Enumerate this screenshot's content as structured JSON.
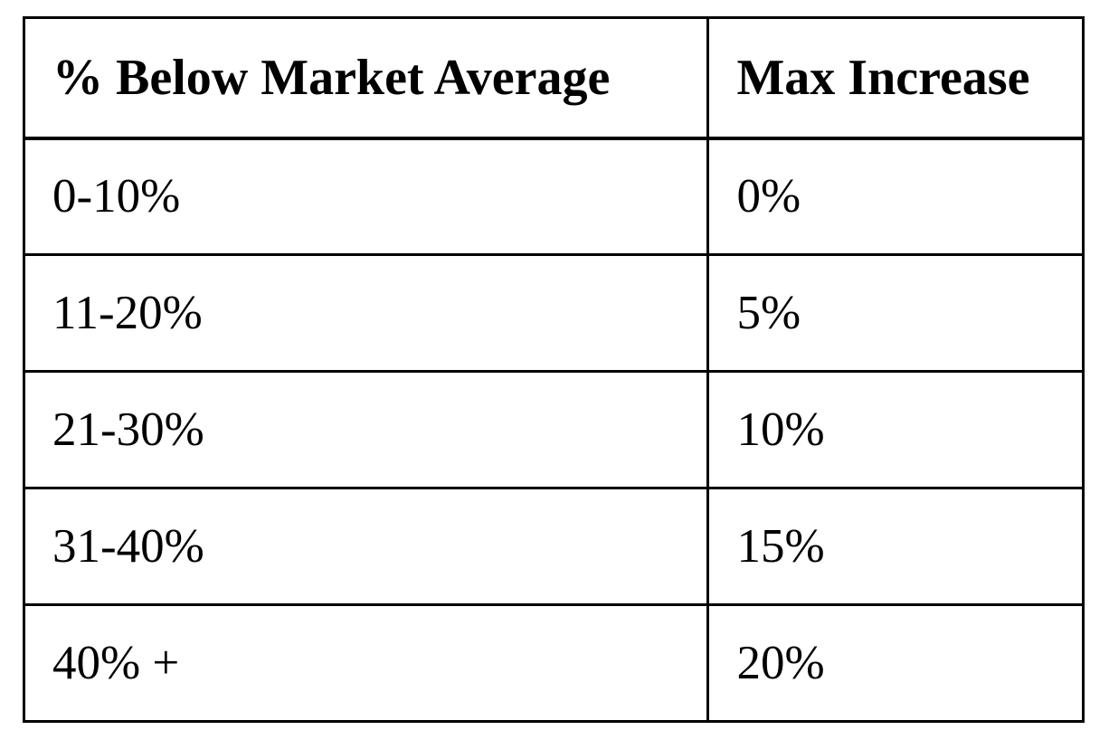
{
  "table": {
    "columns": [
      "% Below Market Average",
      "Max Increase"
    ],
    "rows": [
      {
        "below_market": "0-10%",
        "max_increase": "0%"
      },
      {
        "below_market": "11-20%",
        "max_increase": "5%"
      },
      {
        "below_market": "21-30%",
        "max_increase": "10%"
      },
      {
        "below_market": "31-40%",
        "max_increase": "15%"
      },
      {
        "below_market": "40% +",
        "max_increase": "20%"
      }
    ],
    "style": {
      "border_color": "#000000",
      "background": "#ffffff",
      "text_color": "#000000"
    }
  }
}
